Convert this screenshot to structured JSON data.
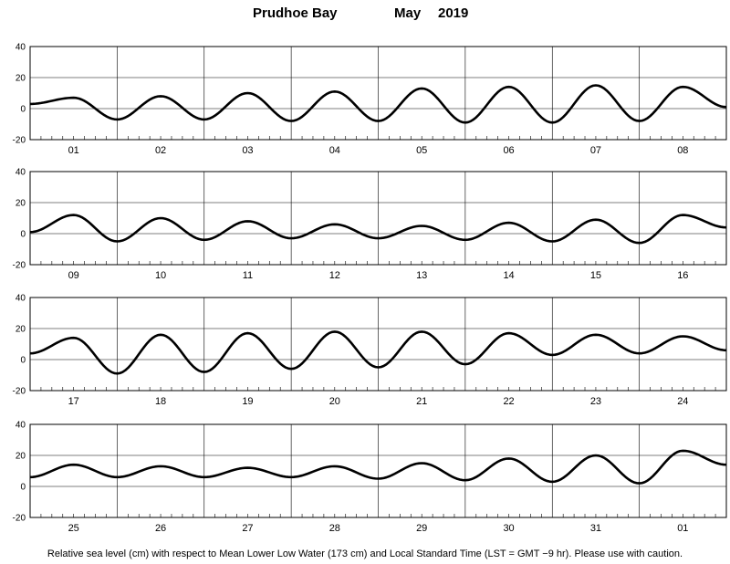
{
  "header": {
    "station": "Prudhoe Bay",
    "month": "May",
    "year": "2019"
  },
  "footnote": "Relative sea level (cm) with respect to Mean Lower Low Water (173 cm) and Local Standard Time (LST = GMT −9 hr). Please use with caution.",
  "chart_data": {
    "type": "line",
    "ylim": [
      -20,
      40
    ],
    "yticks": [
      -20,
      0,
      20,
      40
    ],
    "grid": true,
    "line_color": "#000000",
    "panels": [
      {
        "days": [
          "01",
          "02",
          "03",
          "04",
          "05",
          "06",
          "07",
          "08"
        ],
        "x": [
          0,
          0.5,
          1,
          1.5,
          2,
          2.5,
          3,
          3.5,
          4,
          4.5,
          5,
          5.5,
          6,
          6.5,
          7,
          7.5,
          8
        ],
        "y": [
          3,
          7,
          -7,
          8,
          -7,
          10,
          -8,
          11,
          -8,
          13,
          -9,
          14,
          -9,
          15,
          -8,
          14,
          1
        ]
      },
      {
        "days": [
          "09",
          "10",
          "11",
          "12",
          "13",
          "14",
          "15",
          "16"
        ],
        "x": [
          0,
          0.5,
          1,
          1.5,
          2,
          2.5,
          3,
          3.5,
          4,
          4.5,
          5,
          5.5,
          6,
          6.5,
          7,
          7.5,
          8
        ],
        "y": [
          1,
          12,
          -5,
          10,
          -4,
          8,
          -3,
          6,
          -3,
          5,
          -4,
          7,
          -5,
          9,
          -6,
          12,
          4
        ]
      },
      {
        "days": [
          "17",
          "18",
          "19",
          "20",
          "21",
          "22",
          "23",
          "24"
        ],
        "x": [
          0,
          0.5,
          1,
          1.5,
          2,
          2.5,
          3,
          3.5,
          4,
          4.5,
          5,
          5.5,
          6,
          6.5,
          7,
          7.5,
          8
        ],
        "y": [
          4,
          14,
          -9,
          16,
          -8,
          17,
          -6,
          18,
          -5,
          18,
          -3,
          17,
          3,
          16,
          4,
          15,
          6
        ]
      },
      {
        "days": [
          "25",
          "26",
          "27",
          "28",
          "29",
          "30",
          "31",
          "01"
        ],
        "x": [
          0,
          0.5,
          1,
          1.5,
          2,
          2.5,
          3,
          3.5,
          4,
          4.5,
          5,
          5.5,
          6,
          6.5,
          7,
          7.5,
          8
        ],
        "y": [
          6,
          14,
          6,
          13,
          6,
          12,
          6,
          13,
          5,
          15,
          4,
          18,
          3,
          20,
          2,
          23,
          14
        ]
      }
    ]
  }
}
